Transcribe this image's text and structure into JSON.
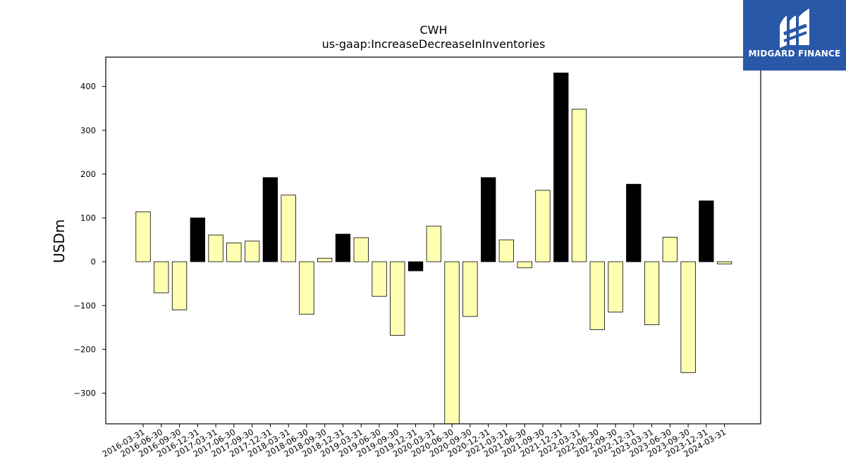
{
  "brand": {
    "name": "MIDGARD FINANCE",
    "color": "#2a58a8"
  },
  "chart_data": {
    "type": "bar",
    "title": "CWH",
    "subtitle": "us-gaap:IncreaseDecreaseInInventories",
    "xlabel": "",
    "ylabel": "USDm",
    "ylim": [
      -370,
      467
    ],
    "yticks": [
      -300,
      -200,
      -100,
      0,
      100,
      200,
      300,
      400
    ],
    "grid": false,
    "legend": "none",
    "colors": {
      "quarter": "#ffffb2",
      "year_end": "#000000",
      "edge": "#000000"
    },
    "categories": [
      "2016-03-31",
      "2016-06-30",
      "2016-09-30",
      "2016-12-31",
      "2017-03-31",
      "2017-06-30",
      "2017-09-30",
      "2017-12-31",
      "2018-03-31",
      "2018-06-30",
      "2018-09-30",
      "2018-12-31",
      "2019-03-31",
      "2019-06-30",
      "2019-09-30",
      "2019-12-31",
      "2020-03-31",
      "2020-06-30",
      "2020-09-30",
      "2020-12-31",
      "2021-03-31",
      "2021-06-30",
      "2021-09-30",
      "2021-12-31",
      "2022-03-31",
      "2022-06-30",
      "2022-09-30",
      "2022-12-31",
      "2023-03-31",
      "2023-06-30",
      "2023-09-30",
      "2023-12-31",
      "2024-03-31"
    ],
    "values": [
      114,
      -71,
      -110,
      100,
      61,
      43,
      47,
      192,
      152,
      -120,
      8,
      63,
      55,
      -79,
      -168,
      -21,
      81,
      -370,
      -125,
      192,
      50,
      -14,
      163,
      431,
      348,
      -155,
      -115,
      177,
      -144,
      56,
      -253,
      139,
      -5
    ],
    "year_end": [
      false,
      false,
      false,
      true,
      false,
      false,
      false,
      true,
      false,
      false,
      false,
      true,
      false,
      false,
      false,
      true,
      false,
      false,
      false,
      true,
      false,
      false,
      false,
      true,
      false,
      false,
      false,
      true,
      false,
      false,
      false,
      true,
      false
    ]
  }
}
